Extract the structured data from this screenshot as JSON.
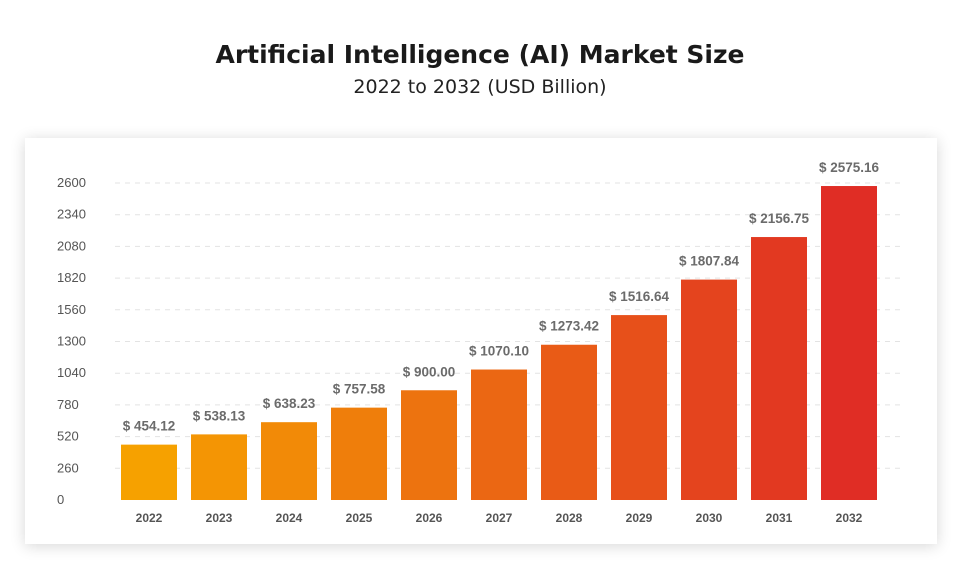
{
  "chart_data": {
    "type": "bar",
    "title": "Artificial Intelligence (AI) Market Size",
    "subtitle": "2022 to 2032 (USD Billion)",
    "categories": [
      "2022",
      "2023",
      "2024",
      "2025",
      "2026",
      "2027",
      "2028",
      "2029",
      "2030",
      "2031",
      "2032"
    ],
    "values": [
      454.12,
      538.13,
      638.23,
      757.58,
      900.0,
      1070.1,
      1273.42,
      1516.64,
      1807.84,
      2156.75,
      2575.16
    ],
    "value_labels": [
      "$ 454.12",
      "$ 538.13",
      "$ 638.23",
      "$ 757.58",
      "$ 900.00",
      "$ 1070.10",
      "$ 1273.42",
      "$ 1516.64",
      "$ 1807.84",
      "$ 2156.75",
      "$ 2575.16"
    ],
    "yticks": [
      0,
      260,
      520,
      780,
      1040,
      1300,
      1560,
      1820,
      2080,
      2340,
      2600
    ],
    "ylim": [
      0,
      2600
    ],
    "xlabel": "",
    "ylabel": "",
    "grid": "dashed horizontal",
    "legend": "none",
    "bar_color_start": "#f6a100",
    "bar_color_end": "#e02d25"
  }
}
